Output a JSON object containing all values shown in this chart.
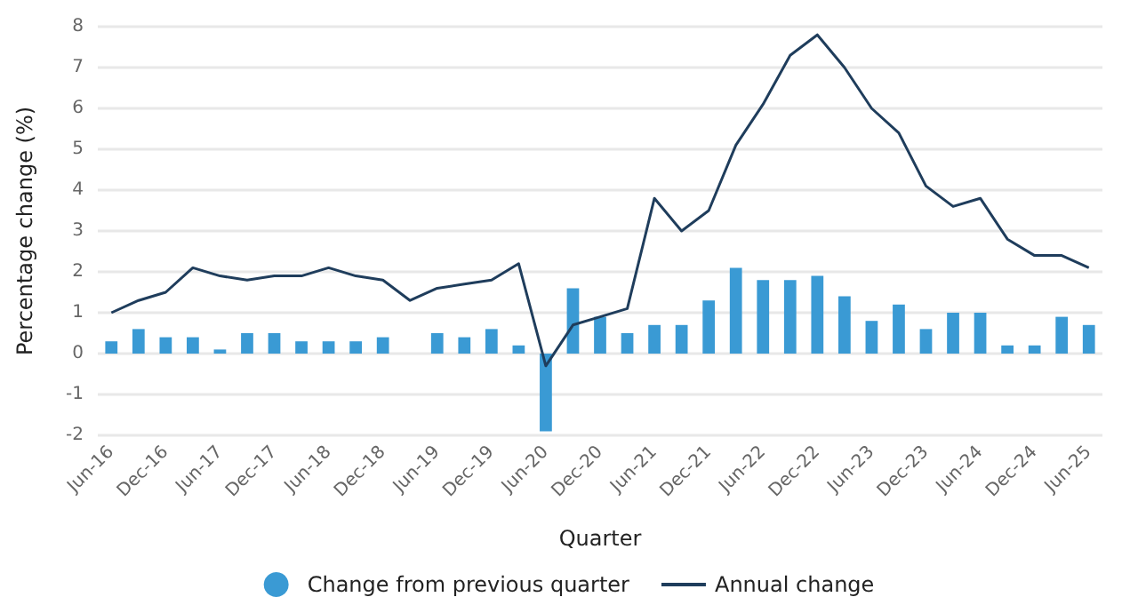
{
  "chart_data": {
    "type": "bar",
    "xlabel": "Quarter",
    "ylabel": "Percentage change (%)",
    "categories": [
      "Jun-16",
      null,
      "Dec-16",
      null,
      "Jun-17",
      null,
      "Dec-17",
      null,
      "Jun-18",
      null,
      "Dec-18",
      null,
      "Jun-19",
      null,
      "Dec-19",
      null,
      "Jun-20",
      null,
      "Dec-20",
      null,
      "Jun-21",
      null,
      "Dec-21",
      null,
      "Jun-22",
      null,
      "Dec-22",
      null,
      "Jun-23",
      null,
      "Dec-23",
      null,
      "Jun-24",
      null,
      "Dec-24",
      null,
      "Jun-25"
    ],
    "series": [
      {
        "name": "Change from previous quarter",
        "color": "#3a9ad4",
        "values": [
          0.3,
          0.6,
          0.4,
          0.4,
          0.1,
          0.5,
          0.5,
          0.3,
          0.3,
          0.3,
          0.4,
          0.0,
          0.5,
          0.4,
          0.6,
          0.2,
          -1.9,
          1.6,
          0.9,
          0.5,
          0.7,
          0.7,
          1.3,
          2.1,
          1.8,
          1.8,
          1.9,
          1.4,
          0.8,
          1.2,
          0.6,
          1.0,
          1.0,
          0.2,
          0.2,
          0.9,
          0.7
        ]
      },
      {
        "name": "Annual change",
        "type": "line",
        "color": "#1f3d5c",
        "values": [
          1.0,
          1.3,
          1.5,
          2.1,
          1.9,
          1.8,
          1.9,
          1.9,
          2.1,
          1.9,
          1.8,
          1.3,
          1.6,
          1.7,
          1.8,
          2.2,
          -0.3,
          0.7,
          0.9,
          1.1,
          3.8,
          3.0,
          3.5,
          5.1,
          6.1,
          7.3,
          7.8,
          7.0,
          6.0,
          5.4,
          4.1,
          3.6,
          3.8,
          2.8,
          2.4,
          2.4,
          2.1
        ]
      }
    ],
    "ylim": [
      -2,
      8
    ],
    "yticks": [
      -2,
      -1,
      0,
      1,
      2,
      3,
      4,
      5,
      6,
      7,
      8
    ],
    "grid": "y",
    "legend": "bottom",
    "marker": "none",
    "line_style": "solid"
  }
}
